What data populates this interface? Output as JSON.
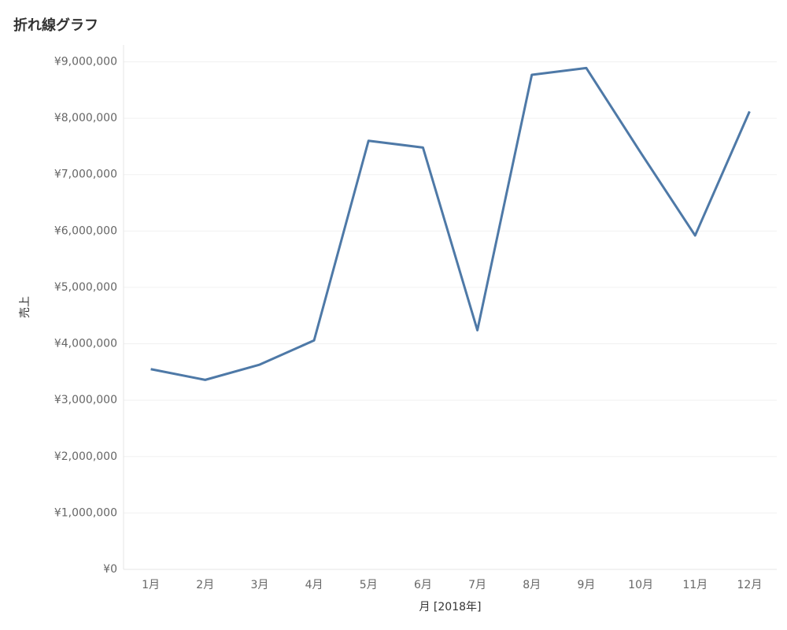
{
  "chart_data": {
    "type": "line",
    "title": "折れ線グラフ",
    "y_label": "売上",
    "x_label": "月 [2018年]",
    "categories": [
      "1月",
      "2月",
      "3月",
      "4月",
      "5月",
      "6月",
      "7月",
      "8月",
      "9月",
      "10月",
      "11月",
      "12月"
    ],
    "series": [
      {
        "name": "売上",
        "color": "#4e79a7",
        "values": [
          3550000,
          3360000,
          3630000,
          4060000,
          7600000,
          7480000,
          4240000,
          8770000,
          8890000,
          7390000,
          5920000,
          8120000
        ]
      }
    ],
    "ylim": [
      0,
      9300000
    ],
    "yticks": [
      {
        "value": 0,
        "label": "¥0"
      },
      {
        "value": 1000000,
        "label": "¥1,000,000"
      },
      {
        "value": 2000000,
        "label": "¥2,000,000"
      },
      {
        "value": 3000000,
        "label": "¥3,000,000"
      },
      {
        "value": 4000000,
        "label": "¥4,000,000"
      },
      {
        "value": 5000000,
        "label": "¥5,000,000"
      },
      {
        "value": 6000000,
        "label": "¥6,000,000"
      },
      {
        "value": 7000000,
        "label": "¥7,000,000"
      },
      {
        "value": 8000000,
        "label": "¥8,000,000"
      },
      {
        "value": 9000000,
        "label": "¥9,000,000"
      }
    ],
    "grid": true
  }
}
